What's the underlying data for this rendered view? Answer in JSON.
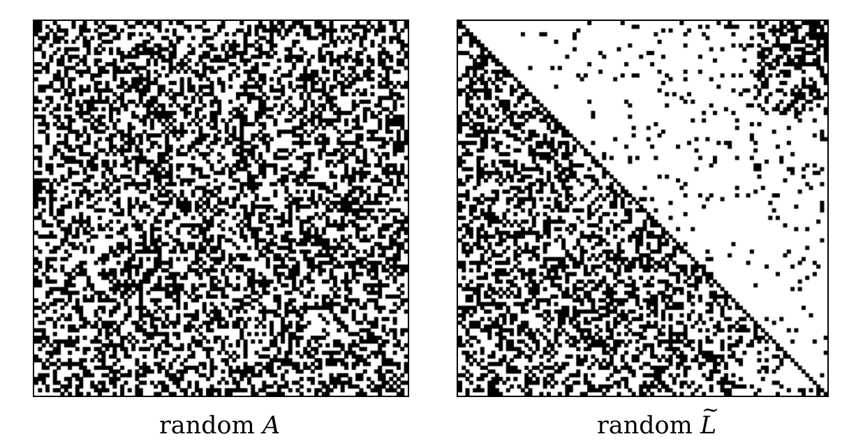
{
  "panels": [
    {
      "id": "a",
      "caption_text": "random",
      "caption_symbol": "A",
      "pattern": "uniform-random",
      "density": 0.42
    },
    {
      "id": "l",
      "caption_text": "random",
      "caption_symbol": "L",
      "caption_symbol_accent": "tilde",
      "pattern": "lower-triangular-dense-upper-sparse",
      "density_lower": 0.4,
      "density_upper": 0.08
    }
  ],
  "colors": {
    "dot": "#000000",
    "background": "#ffffff"
  }
}
